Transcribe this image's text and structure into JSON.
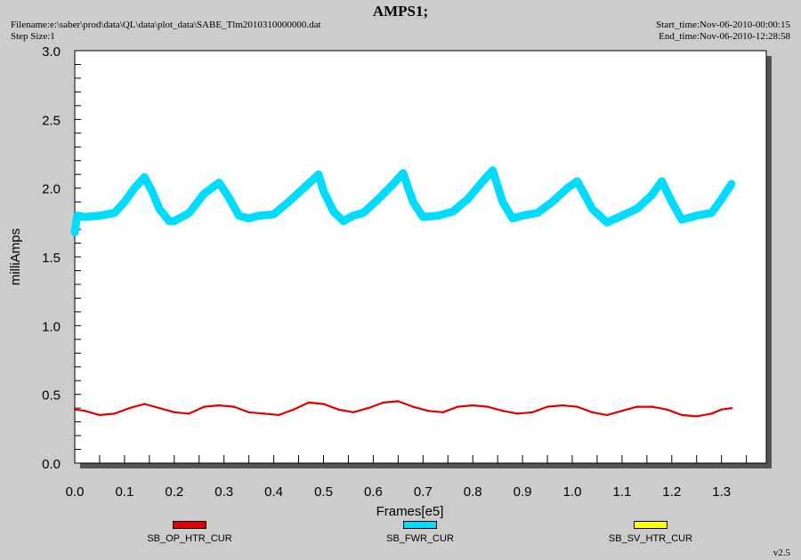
{
  "header": {
    "title": "AMPS1;",
    "filename": "Filename:e:\\saber\\prod\\data\\QL\\data\\plot_data\\SABE_Tlm2010310000000.dat",
    "step_size": "Step Size:1",
    "start_time": "Start_time:Nov-06-2010-00:00:15",
    "end_time": "End_time:Nov-06-2010-12:28:58"
  },
  "footer": {
    "version": "v2.5"
  },
  "chart_data": {
    "type": "line",
    "title": "AMPS1;",
    "xlabel": "Frames[e5]",
    "ylabel": "milliAmps",
    "xlim": [
      0.0,
      1.39
    ],
    "ylim": [
      0.0,
      3.0
    ],
    "x_ticks": [
      "0.0",
      "0.1",
      "0.2",
      "0.3",
      "0.4",
      "0.5",
      "0.6",
      "0.7",
      "0.8",
      "0.9",
      "1.0",
      "1.1",
      "1.2",
      "1.3"
    ],
    "y_ticks": [
      "0.0",
      "0.5",
      "1.0",
      "1.5",
      "2.0",
      "2.5",
      "3.0"
    ],
    "grid": false,
    "legend_position": "bottom",
    "series": [
      {
        "name": "SB_OP_HTR_CUR",
        "color": "#e00000",
        "x": [
          0.0,
          0.02,
          0.05,
          0.08,
          0.11,
          0.14,
          0.17,
          0.2,
          0.23,
          0.26,
          0.29,
          0.32,
          0.35,
          0.38,
          0.41,
          0.44,
          0.47,
          0.5,
          0.53,
          0.56,
          0.59,
          0.62,
          0.65,
          0.68,
          0.71,
          0.74,
          0.77,
          0.8,
          0.83,
          0.86,
          0.89,
          0.92,
          0.95,
          0.98,
          1.01,
          1.04,
          1.07,
          1.1,
          1.13,
          1.16,
          1.19,
          1.22,
          1.25,
          1.28,
          1.3,
          1.32
        ],
        "values": [
          0.39,
          0.38,
          0.35,
          0.36,
          0.4,
          0.43,
          0.4,
          0.37,
          0.36,
          0.41,
          0.42,
          0.41,
          0.37,
          0.36,
          0.35,
          0.39,
          0.44,
          0.43,
          0.39,
          0.37,
          0.4,
          0.44,
          0.45,
          0.41,
          0.38,
          0.37,
          0.41,
          0.42,
          0.41,
          0.38,
          0.36,
          0.37,
          0.41,
          0.42,
          0.41,
          0.37,
          0.35,
          0.38,
          0.41,
          0.41,
          0.39,
          0.35,
          0.34,
          0.36,
          0.39,
          0.4
        ]
      },
      {
        "name": "SB_FWR_CUR",
        "color": "#00dcff",
        "x": [
          0.0,
          0.005,
          0.02,
          0.05,
          0.08,
          0.1,
          0.12,
          0.14,
          0.155,
          0.17,
          0.19,
          0.2,
          0.23,
          0.26,
          0.29,
          0.31,
          0.33,
          0.35,
          0.37,
          0.4,
          0.43,
          0.46,
          0.49,
          0.5,
          0.52,
          0.54,
          0.56,
          0.58,
          0.61,
          0.64,
          0.66,
          0.68,
          0.7,
          0.73,
          0.76,
          0.79,
          0.82,
          0.84,
          0.86,
          0.88,
          0.9,
          0.93,
          0.96,
          0.99,
          1.01,
          1.04,
          1.07,
          1.1,
          1.13,
          1.16,
          1.18,
          1.2,
          1.22,
          1.25,
          1.28,
          1.3,
          1.32
        ],
        "values": [
          1.68,
          1.8,
          1.79,
          1.8,
          1.82,
          1.9,
          2.0,
          2.08,
          1.98,
          1.85,
          1.76,
          1.76,
          1.82,
          1.96,
          2.04,
          1.93,
          1.8,
          1.78,
          1.8,
          1.81,
          1.9,
          2.0,
          2.1,
          1.98,
          1.83,
          1.76,
          1.8,
          1.82,
          1.92,
          2.03,
          2.11,
          1.9,
          1.79,
          1.8,
          1.83,
          1.92,
          2.05,
          2.13,
          1.9,
          1.78,
          1.8,
          1.82,
          1.9,
          2.0,
          2.05,
          1.85,
          1.75,
          1.8,
          1.85,
          1.95,
          2.05,
          1.9,
          1.77,
          1.8,
          1.82,
          1.92,
          2.03
        ]
      },
      {
        "name": "SB_SV_HTR_CUR",
        "color": "#ffff00",
        "x": [],
        "values": []
      }
    ]
  }
}
